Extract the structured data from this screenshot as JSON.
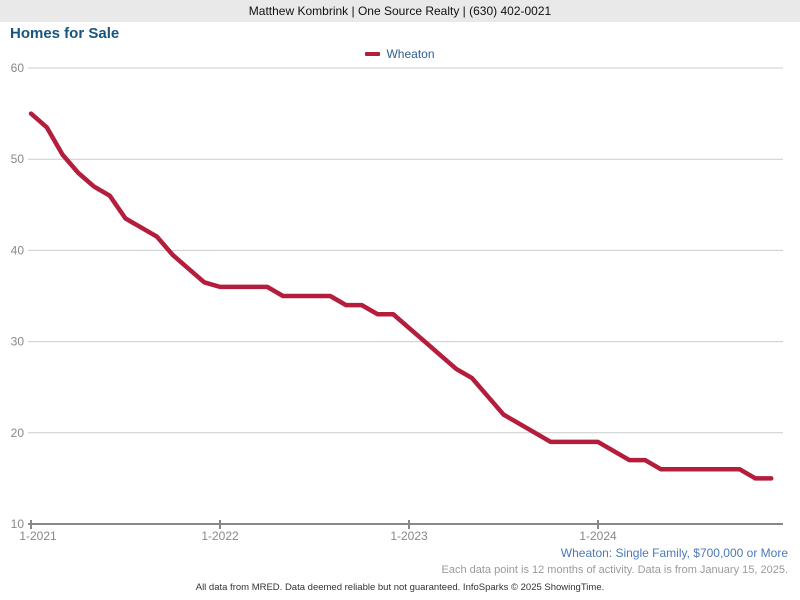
{
  "header": {
    "agent_info": "Matthew Kombrink | One Source Realty | (630) 402-0021"
  },
  "title": "Homes for Sale",
  "legend": {
    "items": [
      {
        "label": "Wheaton",
        "color": "#b41e3c"
      }
    ]
  },
  "chart_data": {
    "type": "line",
    "title": "Homes for Sale",
    "x": [
      "1-2021",
      "2-2021",
      "3-2021",
      "4-2021",
      "5-2021",
      "6-2021",
      "7-2021",
      "8-2021",
      "9-2021",
      "10-2021",
      "11-2021",
      "12-2021",
      "1-2022",
      "2-2022",
      "3-2022",
      "4-2022",
      "5-2022",
      "6-2022",
      "7-2022",
      "8-2022",
      "9-2022",
      "10-2022",
      "11-2022",
      "12-2022",
      "1-2023",
      "2-2023",
      "3-2023",
      "4-2023",
      "5-2023",
      "6-2023",
      "7-2023",
      "8-2023",
      "9-2023",
      "10-2023",
      "11-2023",
      "12-2023",
      "1-2024",
      "2-2024",
      "3-2024",
      "4-2024",
      "5-2024",
      "6-2024",
      "7-2024",
      "8-2024",
      "9-2024",
      "10-2024",
      "11-2024",
      "12-2024"
    ],
    "series": [
      {
        "name": "Wheaton",
        "color": "#b41e3c",
        "values": [
          55,
          53.5,
          50.5,
          48.5,
          47,
          46,
          43.5,
          42.5,
          41.5,
          39.5,
          38,
          36.5,
          36,
          36,
          36,
          36,
          35,
          35,
          35,
          35,
          34,
          34,
          33,
          33,
          31.5,
          30,
          28.5,
          27,
          26,
          24,
          22,
          21,
          20,
          19,
          19,
          19,
          19,
          18,
          17,
          17,
          16,
          16,
          16,
          16,
          16,
          16,
          15,
          15
        ]
      }
    ],
    "ylim": [
      10,
      60
    ],
    "yticks": [
      10,
      20,
      30,
      40,
      50,
      60
    ],
    "xticks": [
      "1-2021",
      "1-2022",
      "1-2023",
      "1-2024"
    ],
    "grid": true,
    "legend_position": "top-center",
    "colors": {
      "gridline": "#cccccc",
      "axis_line": "#888888",
      "tick_label": "#888888"
    }
  },
  "footer": {
    "criteria": "Wheaton: Single Family, $700,000 or More",
    "note": "Each data point is 12 months of activity. Data is from January 15, 2025.",
    "disclaimer": "All data from MRED. Data deemed reliable but not guaranteed. InfoSparks © 2025 ShowingTime."
  }
}
